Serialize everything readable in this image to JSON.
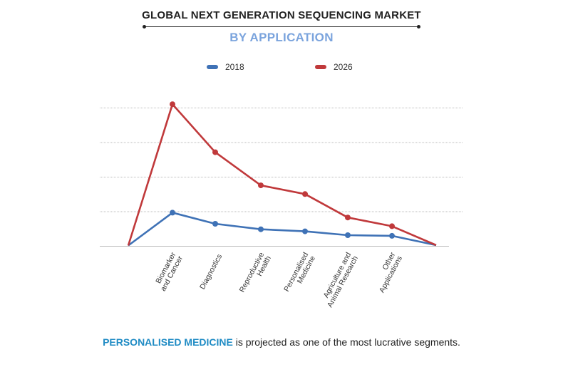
{
  "header": {
    "title": "GLOBAL NEXT GENERATION SEQUENCING MARKET",
    "subtitle": "BY APPLICATION"
  },
  "colors": {
    "series_2018": "#3f72b6",
    "series_2026": "#c0393b",
    "grid": "#bbbbbb",
    "highlight": "#1f8bc4",
    "subtitle": "#7ba4dd"
  },
  "footer": {
    "highlight": "PERSONALISED MEDICINE",
    "rest": " is projected as one of the most lucrative segments."
  },
  "chart_data": {
    "type": "line",
    "title": "GLOBAL NEXT GENERATION SEQUENCING MARKET",
    "subtitle": "BY APPLICATION",
    "categories": [
      "",
      "Biomarker and Cancer",
      "Diagnostics",
      "Reproductive Health",
      "Personalised Medicine",
      "Agriculture and Animal Research",
      "Other Applications",
      ""
    ],
    "category_lines": [
      [],
      [
        "Biomarker",
        "and Cancer"
      ],
      [
        "Diagnostics"
      ],
      [
        "Reproductive",
        "Health"
      ],
      [
        "Personalised",
        "Medicine"
      ],
      [
        "Agriculture and",
        "Animal Research"
      ],
      [
        "Other",
        "Applications"
      ],
      []
    ],
    "series": [
      {
        "name": "2018",
        "values": [
          0.1,
          9.6,
          6.4,
          4.8,
          4.2,
          3.1,
          2.9,
          0.2
        ],
        "markers": [
          false,
          true,
          true,
          true,
          true,
          true,
          true,
          false
        ]
      },
      {
        "name": "2026",
        "values": [
          0.1,
          41.0,
          27.1,
          17.5,
          15.0,
          8.2,
          5.7,
          0.2
        ],
        "markers": [
          false,
          true,
          true,
          true,
          true,
          true,
          true,
          false
        ]
      }
    ],
    "ylim": [
      0,
      40
    ],
    "grid": true,
    "legend": "top-center",
    "xlabel": "",
    "ylabel": ""
  }
}
